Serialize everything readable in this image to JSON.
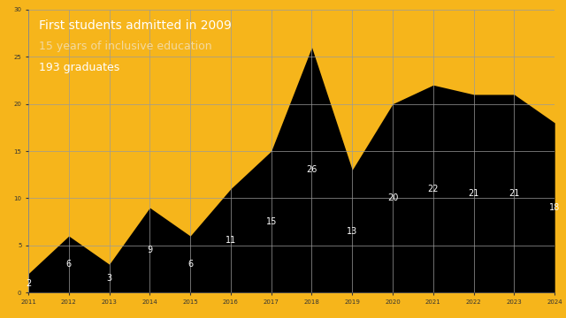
{
  "chart_data": {
    "type": "area",
    "title": "First students admitted in 2009",
    "annotations": [
      "15 years of inclusive education",
      "193 graduates"
    ],
    "categories": [
      "2011",
      "2012",
      "2013",
      "2014",
      "2015",
      "2016",
      "2017",
      "2018",
      "2019",
      "2020",
      "2021",
      "2022",
      "2023",
      "2024"
    ],
    "values": [
      2,
      6,
      3,
      9,
      6,
      11,
      15,
      26,
      13,
      20,
      22,
      21,
      21,
      18
    ],
    "color": "#000000",
    "ylim": [
      0,
      30
    ],
    "yticks": [
      0,
      5,
      10,
      15,
      20,
      25,
      30
    ],
    "grid": true,
    "data_labels": true
  }
}
